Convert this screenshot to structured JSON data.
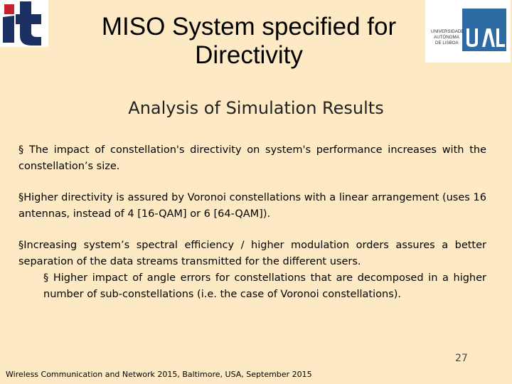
{
  "header": {
    "title_line1": "MISO System specified for",
    "title_line2": "Directivity",
    "logo_left_text": "it",
    "logo_right_text": "UAL",
    "logo_right_caption": [
      "UNIVERSIDADE",
      "AUTÓNOMA",
      "DE LISBOA"
    ]
  },
  "subtitle": "Analysis of Simulation Results",
  "bullets": [
    "§ The impact of constellation's directivity on system's performance increases with the constellation’s size.",
    "§Higher directivity is assured by Voronoi constellations with a linear arrangement (uses 16 antennas, instead of 4 [16-QAM] or 6 [64-QAM]).",
    "§Increasing system’s spectral efficiency / higher modulation orders assures a better separation of the data streams transmitted for the different users."
  ],
  "sub_bullet": "§ Higher impact of angle errors for constellations that are decomposed in a higher number of sub-constellations (i.e. the case of Voronoi constellations).",
  "page_number": "27",
  "footer": "Wireless Communication and Network 2015, Baltimore, USA, September 2015",
  "colors": {
    "background": "#fde9c3",
    "logo_it_red": "#c8202e",
    "logo_it_blue": "#1c2f63",
    "logo_ual_blue": "#2e6aa3"
  }
}
